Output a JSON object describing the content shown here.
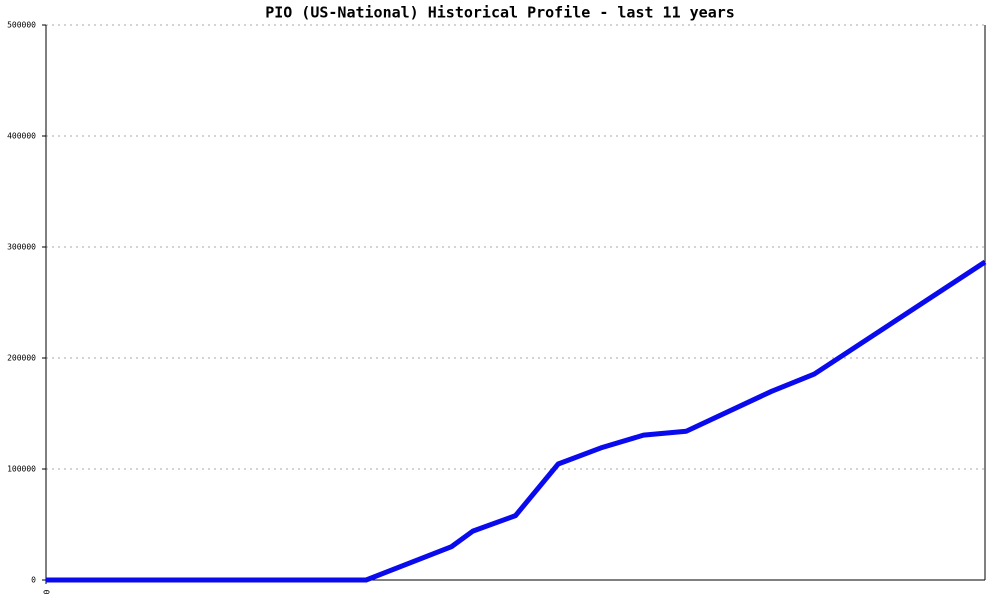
{
  "chart_data": {
    "type": "line",
    "title": "PIO (US-National) Historical Profile - last 11 years",
    "x": [
      0,
      3.75,
      4.75,
      5.0,
      5.5,
      6.0,
      6.5,
      7.0,
      7.5,
      8.5,
      9.0,
      11.0
    ],
    "values": [
      0,
      0,
      30000,
      44000,
      58000,
      104500,
      119000,
      130500,
      134000,
      170000,
      185500,
      286500
    ],
    "color": "#0a0aee",
    "xlim": [
      0,
      11
    ],
    "xticks": [
      0
    ],
    "ylim": [
      0,
      500000
    ],
    "yticks": [
      0,
      100000,
      200000,
      300000,
      400000,
      500000
    ],
    "grid": true
  }
}
